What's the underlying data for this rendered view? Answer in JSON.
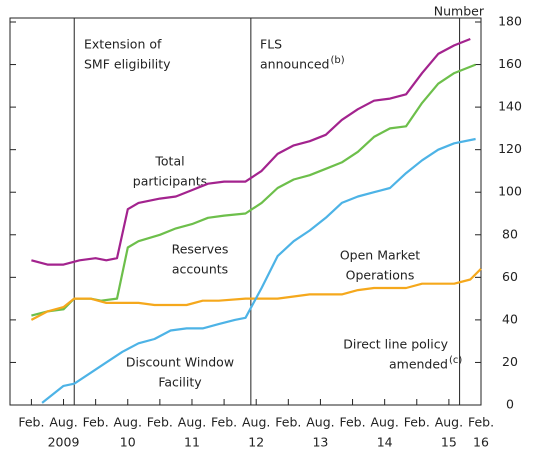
{
  "chart_data": {
    "type": "line",
    "y_axis_label": "Number",
    "xlim": [
      "2008-10",
      "2016-02"
    ],
    "ylim": [
      0,
      180
    ],
    "yticks": [
      0,
      20,
      40,
      60,
      80,
      100,
      120,
      140,
      160,
      180
    ],
    "xticks": [
      {
        "value": "2009-02",
        "label": "Feb."
      },
      {
        "value": "2009-08",
        "label": "Aug."
      },
      {
        "value": "2010-02",
        "label": "Feb."
      },
      {
        "value": "2010-08",
        "label": "Aug."
      },
      {
        "value": "2011-02",
        "label": "Feb."
      },
      {
        "value": "2011-08",
        "label": "Aug."
      },
      {
        "value": "2012-02",
        "label": "Feb."
      },
      {
        "value": "2012-08",
        "label": "Aug."
      },
      {
        "value": "2013-02",
        "label": "Feb."
      },
      {
        "value": "2013-08",
        "label": "Aug."
      },
      {
        "value": "2014-02",
        "label": "Feb."
      },
      {
        "value": "2014-08",
        "label": "Aug."
      },
      {
        "value": "2015-02",
        "label": "Feb."
      },
      {
        "value": "2015-08",
        "label": "Aug."
      },
      {
        "value": "2016-02",
        "label": "Feb."
      }
    ],
    "year_labels": [
      {
        "value": "2009-08",
        "label": "2009"
      },
      {
        "value": "2010-08",
        "label": "10"
      },
      {
        "value": "2011-08",
        "label": "11"
      },
      {
        "value": "2012-08",
        "label": "12"
      },
      {
        "value": "2013-08",
        "label": "13"
      },
      {
        "value": "2014-08",
        "label": "14"
      },
      {
        "value": "2015-08",
        "label": "15"
      },
      {
        "value": "2016-02",
        "label": "16"
      }
    ],
    "events": [
      {
        "x": "2009-10",
        "lines": [
          "Extension of",
          "SMF eligibility"
        ]
      },
      {
        "x": "2012-07",
        "lines": [
          "FLS",
          "announced"
        ],
        "note": "(b)"
      },
      {
        "x": "2015-10"
      }
    ],
    "annotations": [
      {
        "lines": [
          "Total",
          "participants"
        ]
      },
      {
        "lines": [
          "Reserves",
          "accounts"
        ]
      },
      {
        "lines": [
          "Open Market",
          "Operations"
        ]
      },
      {
        "lines": [
          "Discount Window",
          "Facility"
        ]
      },
      {
        "lines": [
          "Direct line policy",
          "amended"
        ],
        "note": "(c)"
      }
    ],
    "series": [
      {
        "name": "Total participants",
        "color": "#a3238e",
        "x": [
          "2009-02",
          "2009-05",
          "2009-08",
          "2009-11",
          "2010-02",
          "2010-04",
          "2010-06",
          "2010-08",
          "2010-10",
          "2011-02",
          "2011-05",
          "2011-08",
          "2011-11",
          "2012-02",
          "2012-06",
          "2012-09",
          "2012-12",
          "2013-03",
          "2013-06",
          "2013-09",
          "2013-12",
          "2014-03",
          "2014-06",
          "2014-09",
          "2014-12",
          "2015-03",
          "2015-06",
          "2015-09",
          "2015-12"
        ],
        "values": [
          68,
          66,
          66,
          68,
          69,
          68,
          69,
          92,
          95,
          97,
          98,
          101,
          104,
          105,
          105,
          110,
          118,
          122,
          124,
          127,
          134,
          139,
          143,
          144,
          146,
          156,
          165,
          169,
          172
        ]
      },
      {
        "name": "Reserves accounts",
        "color": "#6dbf4b",
        "x": [
          "2009-02",
          "2009-05",
          "2009-08",
          "2009-10",
          "2010-01",
          "2010-03",
          "2010-06",
          "2010-08",
          "2010-10",
          "2011-02",
          "2011-05",
          "2011-08",
          "2011-11",
          "2012-02",
          "2012-06",
          "2012-09",
          "2012-12",
          "2013-03",
          "2013-06",
          "2013-09",
          "2013-12",
          "2014-03",
          "2014-06",
          "2014-09",
          "2014-12",
          "2015-03",
          "2015-06",
          "2015-09",
          "2016-01"
        ],
        "values": [
          42,
          44,
          45,
          50,
          50,
          49,
          50,
          74,
          77,
          80,
          83,
          85,
          88,
          89,
          90,
          95,
          102,
          106,
          108,
          111,
          114,
          119,
          126,
          130,
          131,
          142,
          151,
          156,
          160
        ]
      },
      {
        "name": "Open Market Operations",
        "color": "#f5a81c",
        "x": [
          "2009-02",
          "2009-05",
          "2009-08",
          "2009-10",
          "2010-01",
          "2010-04",
          "2010-07",
          "2010-10",
          "2011-01",
          "2011-04",
          "2011-07",
          "2011-10",
          "2012-01",
          "2012-06",
          "2012-09",
          "2012-12",
          "2013-03",
          "2013-06",
          "2013-09",
          "2013-12",
          "2014-03",
          "2014-06",
          "2014-09",
          "2014-12",
          "2015-03",
          "2015-06",
          "2015-09",
          "2015-12",
          "2016-02"
        ],
        "values": [
          40,
          44,
          46,
          50,
          50,
          48,
          48,
          48,
          47,
          47,
          47,
          49,
          49,
          50,
          50,
          50,
          51,
          52,
          52,
          52,
          54,
          55,
          55,
          55,
          57,
          57,
          57,
          59,
          64
        ]
      },
      {
        "name": "Discount Window Facility",
        "color": "#4db3e6",
        "x": [
          "2009-04",
          "2009-08",
          "2009-10",
          "2010-01",
          "2010-04",
          "2010-07",
          "2010-10",
          "2011-01",
          "2011-04",
          "2011-07",
          "2011-10",
          "2012-01",
          "2012-04",
          "2012-06",
          "2012-09",
          "2012-12",
          "2013-03",
          "2013-06",
          "2013-09",
          "2013-12",
          "2014-03",
          "2014-06",
          "2014-09",
          "2014-12",
          "2015-03",
          "2015-06",
          "2015-09",
          "2016-01"
        ],
        "values": [
          1,
          9,
          10,
          15,
          20,
          25,
          29,
          31,
          35,
          36,
          36,
          38,
          40,
          41,
          55,
          70,
          77,
          82,
          88,
          95,
          98,
          100,
          102,
          109,
          115,
          120,
          123,
          125
        ]
      }
    ]
  }
}
